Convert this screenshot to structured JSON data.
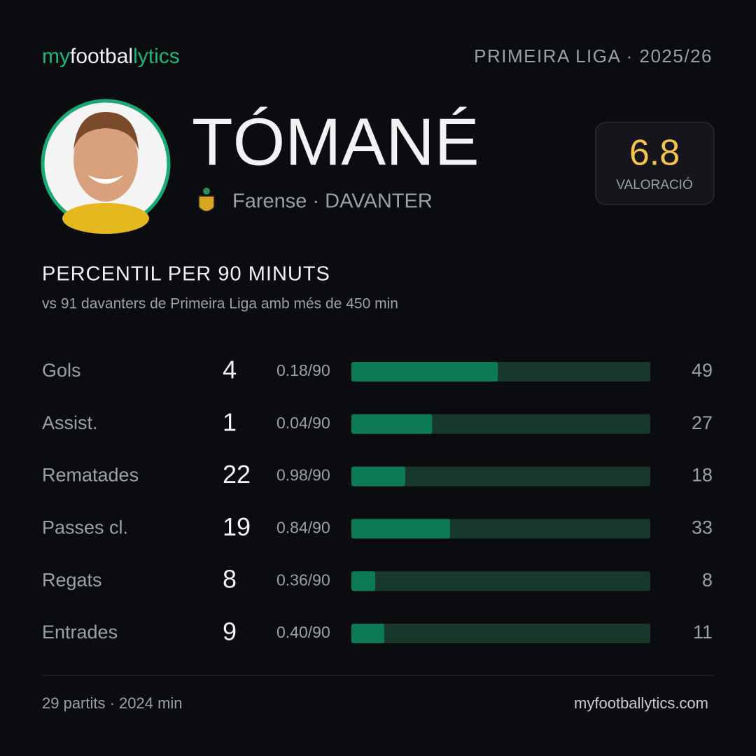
{
  "header": {
    "brand": [
      "my",
      "footbal",
      "lytics"
    ],
    "league": "PRIMEIRA LIGA · 2025/26"
  },
  "player": {
    "name": "TÓMANÉ",
    "team_position": "Farense · DAVANTER",
    "rating": 6.8,
    "rating_label": "VALORACIÓ"
  },
  "section": {
    "title": "PERCENTIL PER 90 MINUTS",
    "subtitle": "vs 91 davanters de Primeira Liga amb més de 450 min"
  },
  "stats": {
    "xlim": [
      0,
      100
    ],
    "rows": [
      {
        "label": "Gols",
        "total": 4,
        "per90": "0.18/90",
        "percentile": 49
      },
      {
        "label": "Assist.",
        "total": 1,
        "per90": "0.04/90",
        "percentile": 27
      },
      {
        "label": "Rematades",
        "total": 22,
        "per90": "0.98/90",
        "percentile": 18
      },
      {
        "label": "Passes cl.",
        "total": 19,
        "per90": "0.84/90",
        "percentile": 33
      },
      {
        "label": "Regats",
        "total": 8,
        "per90": "0.36/90",
        "percentile": 8
      },
      {
        "label": "Entrades",
        "total": 9,
        "per90": "0.40/90",
        "percentile": 11
      }
    ]
  },
  "footer": {
    "left": "29 partits · 2024 min",
    "right": "myfootballytics.com"
  }
}
